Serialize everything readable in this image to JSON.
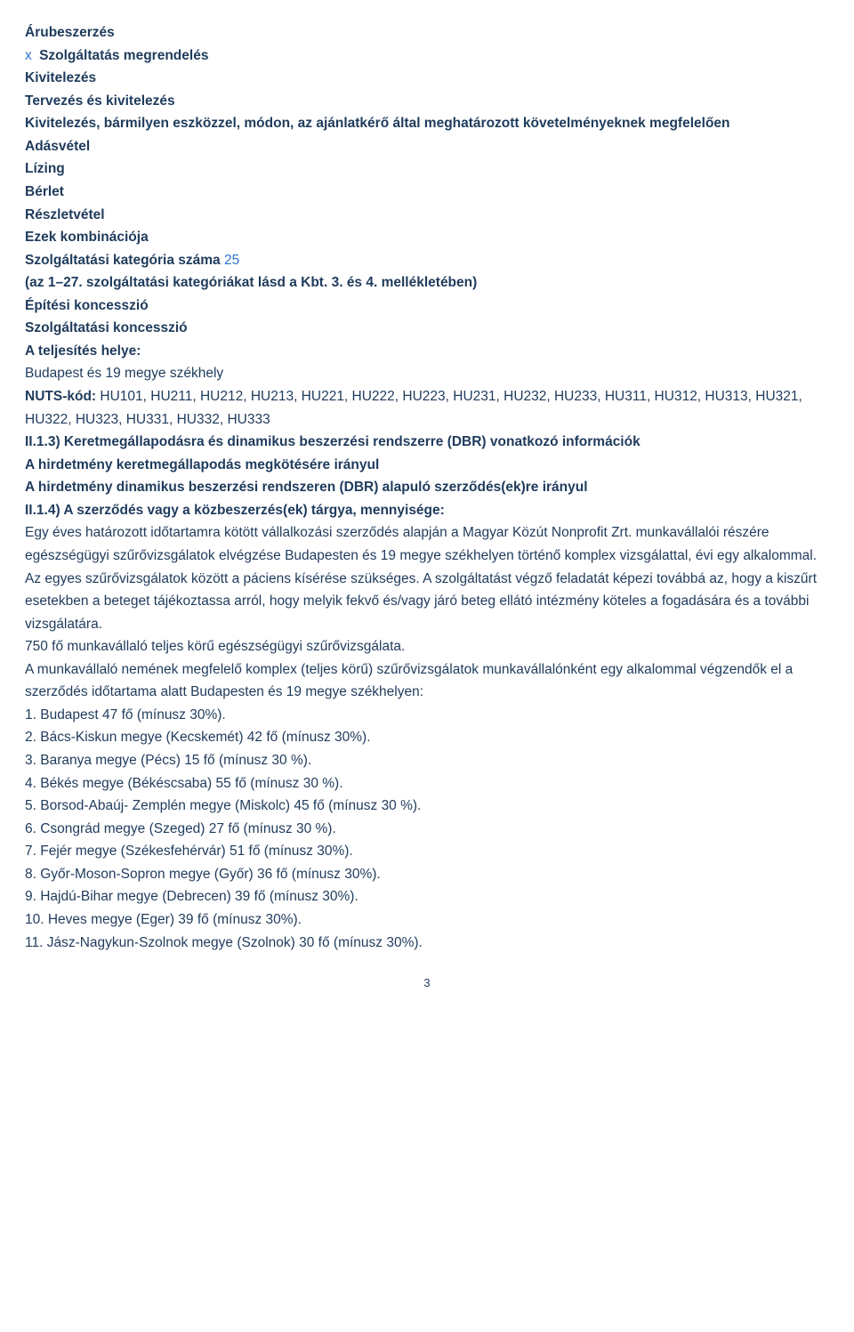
{
  "colors": {
    "text": "#1f3b5c",
    "accent": "#2b75c9",
    "background": "#ffffff"
  },
  "typography": {
    "font_family": "Arial, Helvetica, sans-serif",
    "base_size_pt": 11.5,
    "line_height": 1.65
  },
  "options": {
    "item1": "Árubeszerzés",
    "item2_marker": "x",
    "item2": "Szolgáltatás megrendelés",
    "item3": "Kivitelezés",
    "item4": "Tervezés és kivitelezés",
    "item5": "Kivitelezés, bármilyen eszközzel, módon, az ajánlatkérő által meghatározott követelményeknek megfelelően",
    "item6": "Adásvétel",
    "item7": "Lízing",
    "item8": "Bérlet",
    "item9": "Részletvétel",
    "item10": "Ezek kombinációja"
  },
  "category_line": {
    "prefix": "Szolgáltatási kategória száma ",
    "number": "25"
  },
  "category_note": "(az 1–27. szolgáltatási kategóriákat lásd a Kbt. 3. és 4. mellékletében)",
  "concession1": "Építési koncesszió",
  "concession2": "Szolgáltatási koncesszió",
  "place_label": "A teljesítés helye:",
  "place_value": "Budapest és 19 megye székhely",
  "nuts": {
    "label": "NUTS-kód: ",
    "codes": "HU101, HU211, HU212, HU213, HU221, HU222, HU223, HU231, HU232, HU233, HU311, HU312, HU313, HU321, HU322, HU323, HU331, HU332, HU333"
  },
  "ii13_heading": "II.1.3) Keretmegállapodásra és dinamikus beszerzési rendszerre (DBR) vonatkozó információk",
  "ii13_line1": " A hirdetmény keretmegállapodás megkötésére irányul",
  "ii13_line2": " A hirdetmény dinamikus beszerzési rendszeren (DBR) alapuló szerződés(ek)re irányul",
  "ii14_heading": "II.1.4) A szerződés vagy a közbeszerzés(ek) tárgya, mennyisége:",
  "body": {
    "p1": "Egy éves határozott időtartamra kötött vállalkozási szerződés alapján a Magyar Közút Nonprofit Zrt. munkavállalói részére egészségügyi szűrővizsgálatok elvégzése Budapesten és 19 megye székhelyen történő komplex vizsgálattal, évi egy alkalommal. Az egyes szűrővizsgálatok között a páciens kísérése szükséges. A szolgáltatást végző feladatát képezi továbbá az, hogy a kiszűrt esetekben a beteget tájékoztassa arról, hogy melyik fekvő és/vagy járó beteg ellátó intézmény köteles a fogadására és a további vizsgálatára.",
    "p2": "750 fő munkavállaló teljes körű egészségügyi szűrővizsgálata.",
    "p3": "A munkavállaló nemének megfelelő komplex (teljes körű) szűrővizsgálatok munkavállalónként egy alkalommal végzendők el a szerződés időtartama alatt Budapesten és 19 megye székhelyen:"
  },
  "list": {
    "i1": "1. Budapest 47 fő (mínusz 30%).",
    "i2": "2. Bács-Kiskun megye (Kecskemét) 42 fő (mínusz 30%).",
    "i3": "3. Baranya megye (Pécs) 15 fő (mínusz 30 %).",
    "i4": "4. Békés megye (Békéscsaba) 55 fő (mínusz 30 %).",
    "i5": "5. Borsod-Abaúj- Zemplén megye (Miskolc) 45 fő (mínusz 30 %).",
    "i6": "6. Csongrád megye (Szeged) 27 fő (mínusz 30 %).",
    "i7": "7. Fejér megye (Székesfehérvár) 51 fő (mínusz 30%).",
    "i8": "8. Győr-Moson-Sopron megye (Győr) 36 fő (mínusz 30%).",
    "i9": "9. Hajdú-Bihar megye (Debrecen) 39 fő (mínusz 30%).",
    "i10": "10. Heves megye (Eger) 39 fő (mínusz 30%).",
    "i11": "11. Jász-Nagykun-Szolnok megye (Szolnok) 30 fő (mínusz 30%)."
  },
  "page_number": "3"
}
